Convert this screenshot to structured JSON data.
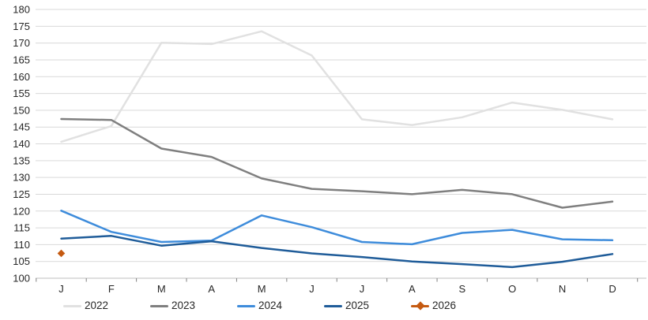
{
  "chart_data": {
    "type": "line",
    "title": "",
    "x_labels": [
      "J",
      "F",
      "M",
      "A",
      "M",
      "J",
      "J",
      "A",
      "S",
      "O",
      "N",
      "D"
    ],
    "y_axis": {
      "min": 100,
      "max": 180,
      "step": 5,
      "ticks": [
        100,
        105,
        110,
        115,
        120,
        125,
        130,
        135,
        140,
        145,
        150,
        155,
        160,
        165,
        170,
        175,
        180
      ]
    },
    "grid": true,
    "legend_position": "bottom",
    "colors": {
      "background": "#FFFFFF",
      "gridline": "#D9D9D9",
      "axis_line": "#BFBFBF",
      "tick_mark": "#808080",
      "text": "#262626"
    },
    "series": [
      {
        "name": "2022",
        "color": "#E1E1E1",
        "marker": "none",
        "values": [
          140.6,
          145.3,
          170.1,
          169.7,
          173.5,
          166.3,
          147.3,
          145.6,
          147.9,
          152.3,
          150.1,
          147.3
        ]
      },
      {
        "name": "2023",
        "color": "#7F7F7F",
        "marker": "none",
        "values": [
          147.4,
          147.1,
          138.6,
          136.1,
          129.7,
          126.6,
          125.9,
          125.0,
          126.3,
          125.0,
          121.0,
          122.8
        ]
      },
      {
        "name": "2024",
        "color": "#3E8CDB",
        "marker": "none",
        "values": [
          120.1,
          113.8,
          110.8,
          111.2,
          118.7,
          115.2,
          110.8,
          110.1,
          113.5,
          114.4,
          111.6,
          111.3
        ]
      },
      {
        "name": "2025",
        "color": "#1F5C99",
        "marker": "none",
        "values": [
          111.8,
          112.6,
          109.7,
          111.0,
          109.0,
          107.4,
          106.3,
          105.0,
          104.2,
          103.3,
          104.9,
          107.2
        ]
      },
      {
        "name": "2026",
        "color": "#C55A11",
        "marker": "diamond",
        "values": [
          107.4,
          null,
          null,
          null,
          null,
          null,
          null,
          null,
          null,
          null,
          null,
          null
        ]
      }
    ]
  }
}
